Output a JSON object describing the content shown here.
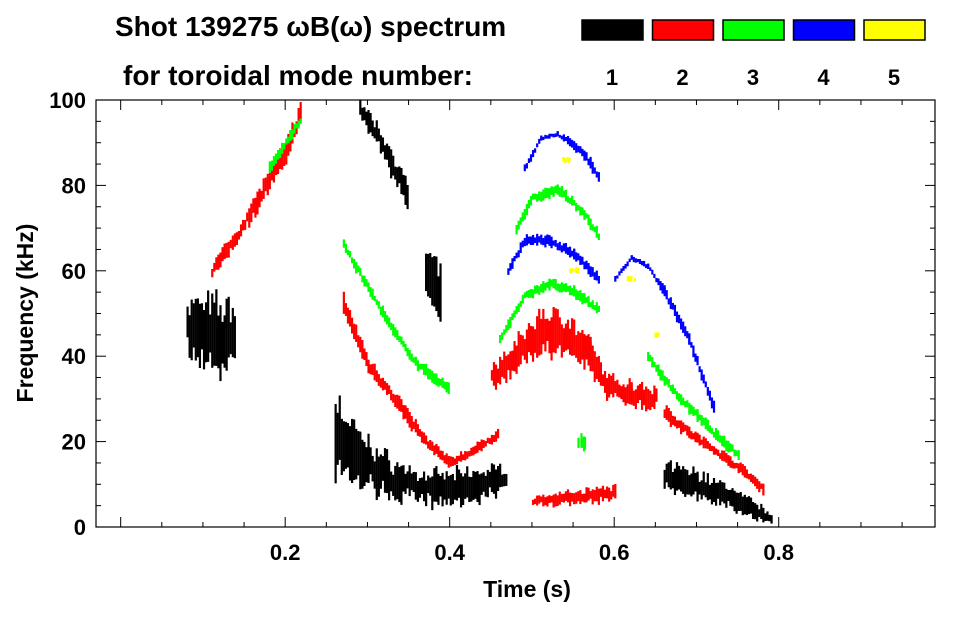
{
  "chart_data": {
    "type": "heatmap",
    "title_line1": "Shot 139275 ωB(ω) spectrum",
    "title_line2": "for toroidal mode number:",
    "xlabel": "Time (s)",
    "ylabel": "Frequency (kHz)",
    "xlim": [
      -0.03,
      0.99
    ],
    "ylim": [
      0,
      100
    ],
    "xticks": [
      "0.2",
      "0.4",
      "0.6",
      "0.8"
    ],
    "xtick_values": [
      0.2,
      0.4,
      0.6,
      0.8
    ],
    "yticks": [
      "0",
      "20",
      "40",
      "60",
      "80",
      "100"
    ],
    "ytick_values": [
      0,
      20,
      40,
      60,
      80,
      100
    ],
    "legend": [
      {
        "label": "1",
        "color": "#000000"
      },
      {
        "label": "2",
        "color": "#ff0000"
      },
      {
        "label": "3",
        "color": "#00ff00"
      },
      {
        "label": "4",
        "color": "#0000ff"
      },
      {
        "label": "5",
        "color": "#ffff00"
      }
    ],
    "series": [
      {
        "name": "1",
        "color": "#000000",
        "tracks": [
          [
            [
              0.08,
              46,
              12
            ],
            [
              0.1,
              46,
              12
            ],
            [
              0.12,
              44,
              14
            ],
            [
              0.14,
              46,
              10
            ]
          ],
          [
            [
              0.26,
              22,
              14
            ],
            [
              0.29,
              16,
              10
            ],
            [
              0.32,
              12,
              8
            ],
            [
              0.36,
              9,
              6
            ],
            [
              0.4,
              9,
              6
            ],
            [
              0.44,
              10,
              6
            ],
            [
              0.47,
              12,
              4
            ]
          ],
          [
            [
              0.29,
              98,
              4
            ],
            [
              0.31,
              92,
              4
            ],
            [
              0.33,
              85,
              5
            ],
            [
              0.35,
              76,
              5
            ]
          ],
          [
            [
              0.37,
              60,
              10
            ],
            [
              0.39,
              52,
              10
            ]
          ],
          [
            [
              0.66,
              12,
              5
            ],
            [
              0.7,
              10,
              5
            ],
            [
              0.74,
              7,
              4
            ],
            [
              0.77,
              4,
              3
            ],
            [
              0.79,
              2,
              2
            ]
          ]
        ]
      },
      {
        "name": "2",
        "color": "#ff0000",
        "tracks": [
          [
            [
              0.11,
              60,
              3
            ],
            [
              0.14,
              68,
              3
            ],
            [
              0.17,
              78,
              4
            ],
            [
              0.2,
              88,
              4
            ],
            [
              0.22,
              98,
              4
            ]
          ],
          [
            [
              0.27,
              52,
              4
            ],
            [
              0.3,
              38,
              3
            ],
            [
              0.34,
              28,
              3
            ],
            [
              0.37,
              20,
              2
            ],
            [
              0.4,
              15,
              2
            ],
            [
              0.43,
              18,
              2
            ],
            [
              0.46,
              22,
              2
            ]
          ],
          [
            [
              0.45,
              35,
              4
            ],
            [
              0.48,
              40,
              6
            ],
            [
              0.51,
              46,
              8
            ],
            [
              0.54,
              45,
              8
            ],
            [
              0.57,
              40,
              6
            ],
            [
              0.59,
              33,
              4
            ],
            [
              0.62,
              31,
              5
            ],
            [
              0.65,
              30,
              5
            ]
          ],
          [
            [
              0.66,
              27,
              3
            ],
            [
              0.69,
              22,
              2
            ],
            [
              0.72,
              18,
              2
            ],
            [
              0.75,
              14,
              2
            ],
            [
              0.78,
              9,
              2
            ]
          ],
          [
            [
              0.5,
              6,
              2
            ],
            [
              0.6,
              8,
              3
            ]
          ]
        ]
      },
      {
        "name": "3",
        "color": "#00ff00",
        "tracks": [
          [
            [
              0.18,
              84,
              2
            ],
            [
              0.2,
              90,
              2
            ],
            [
              0.22,
              96,
              2
            ]
          ],
          [
            [
              0.27,
              66,
              2
            ],
            [
              0.3,
              56,
              2
            ],
            [
              0.33,
              46,
              2
            ],
            [
              0.36,
              38,
              2
            ],
            [
              0.4,
              32,
              2
            ]
          ],
          [
            [
              0.46,
              44,
              2
            ],
            [
              0.49,
              54,
              2
            ],
            [
              0.52,
              57,
              2
            ],
            [
              0.55,
              55,
              2
            ],
            [
              0.58,
              51,
              2
            ]
          ],
          [
            [
              0.48,
              70,
              2
            ],
            [
              0.5,
              77,
              2
            ],
            [
              0.53,
              79,
              2
            ],
            [
              0.56,
              74,
              2
            ],
            [
              0.58,
              68,
              2
            ]
          ],
          [
            [
              0.64,
              40,
              2
            ],
            [
              0.67,
              32,
              2
            ],
            [
              0.7,
              26,
              2
            ],
            [
              0.73,
              20,
              2
            ],
            [
              0.75,
              17,
              2
            ]
          ],
          [
            [
              0.56,
              20,
              3
            ]
          ]
        ]
      },
      {
        "name": "4",
        "color": "#0000ff",
        "tracks": [
          [
            [
              0.49,
              84,
              2
            ],
            [
              0.51,
              91,
              1
            ],
            [
              0.53,
              92,
              1
            ],
            [
              0.56,
              88,
              2
            ],
            [
              0.58,
              82,
              2
            ]
          ],
          [
            [
              0.47,
              60,
              2
            ],
            [
              0.49,
              67,
              2
            ],
            [
              0.52,
              67,
              2
            ],
            [
              0.55,
              64,
              2
            ],
            [
              0.58,
              58,
              2
            ]
          ],
          [
            [
              0.6,
              58,
              1
            ],
            [
              0.62,
              63,
              1
            ],
            [
              0.64,
              61,
              1
            ],
            [
              0.66,
              55,
              2
            ],
            [
              0.69,
              44,
              2
            ],
            [
              0.72,
              28,
              2
            ]
          ]
        ]
      },
      {
        "name": "5",
        "color": "#ffff00",
        "tracks": [
          [
            [
              0.55,
              60,
              1
            ]
          ],
          [
            [
              0.62,
              58,
              1
            ]
          ],
          [
            [
              0.65,
              45,
              1
            ]
          ],
          [
            [
              0.54,
              86,
              1
            ]
          ]
        ]
      }
    ]
  }
}
